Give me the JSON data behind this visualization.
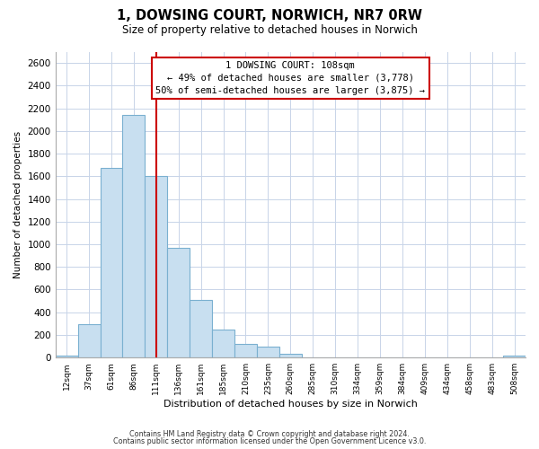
{
  "title": "1, DOWSING COURT, NORWICH, NR7 0RW",
  "subtitle": "Size of property relative to detached houses in Norwich",
  "xlabel": "Distribution of detached houses by size in Norwich",
  "ylabel": "Number of detached properties",
  "bar_labels": [
    "12sqm",
    "37sqm",
    "61sqm",
    "86sqm",
    "111sqm",
    "136sqm",
    "161sqm",
    "185sqm",
    "210sqm",
    "235sqm",
    "260sqm",
    "285sqm",
    "310sqm",
    "334sqm",
    "359sqm",
    "384sqm",
    "409sqm",
    "434sqm",
    "458sqm",
    "483sqm",
    "508sqm"
  ],
  "bar_values": [
    20,
    295,
    1670,
    2140,
    1600,
    965,
    505,
    250,
    120,
    95,
    35,
    0,
    0,
    0,
    0,
    0,
    0,
    0,
    0,
    0,
    20
  ],
  "bar_color": "#c8dff0",
  "bar_edge_color": "#7ab0d0",
  "vline_x_idx": 4,
  "vline_color": "#cc0000",
  "annotation_title": "1 DOWSING COURT: 108sqm",
  "annotation_line1": "← 49% of detached houses are smaller (3,778)",
  "annotation_line2": "50% of semi-detached houses are larger (3,875) →",
  "annotation_box_color": "#ffffff",
  "annotation_box_edge": "#cc0000",
  "ylim": [
    0,
    2700
  ],
  "yticks": [
    0,
    200,
    400,
    600,
    800,
    1000,
    1200,
    1400,
    1600,
    1800,
    2000,
    2200,
    2400,
    2600
  ],
  "footer_line1": "Contains HM Land Registry data © Crown copyright and database right 2024.",
  "footer_line2": "Contains public sector information licensed under the Open Government Licence v3.0.",
  "bg_color": "#ffffff",
  "grid_color": "#c8d4e8"
}
